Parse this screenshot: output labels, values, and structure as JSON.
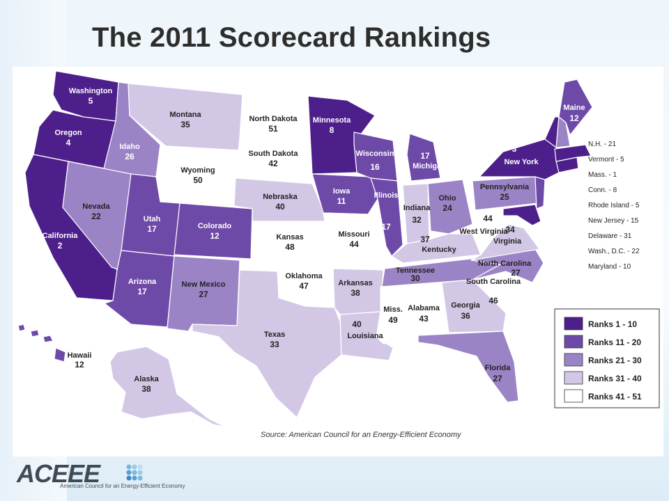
{
  "slide": {
    "title": "The 2011 Scorecard Rankings"
  },
  "colors": {
    "rank_1_10": "#4d1f8a",
    "rank_11_20": "#6e4aa8",
    "rank_21_30": "#9b84c6",
    "rank_31_40": "#d2c8e6",
    "rank_41_51": "#ffffff"
  },
  "map": {
    "states": [
      {
        "id": "washington",
        "name": "Washington",
        "rank": "5",
        "tier": "rank_1_10"
      },
      {
        "id": "oregon",
        "name": "Oregon",
        "rank": "4",
        "tier": "rank_1_10"
      },
      {
        "id": "california",
        "name": "California",
        "rank": "2",
        "tier": "rank_1_10"
      },
      {
        "id": "idaho",
        "name": "Idaho",
        "rank": "26",
        "tier": "rank_21_30"
      },
      {
        "id": "nevada",
        "name": "Nevada",
        "rank": "22",
        "tier": "rank_21_30"
      },
      {
        "id": "montana",
        "name": "Montana",
        "rank": "35",
        "tier": "rank_31_40"
      },
      {
        "id": "wyoming",
        "name": "Wyoming",
        "rank": "50",
        "tier": "rank_41_51"
      },
      {
        "id": "utah",
        "name": "Utah",
        "rank": "17",
        "tier": "rank_11_20"
      },
      {
        "id": "arizona",
        "name": "Arizona",
        "rank": "17",
        "tier": "rank_11_20"
      },
      {
        "id": "colorado",
        "name": "Colorado",
        "rank": "12",
        "tier": "rank_11_20"
      },
      {
        "id": "new_mexico",
        "name": "New Mexico",
        "rank": "27",
        "tier": "rank_21_30"
      },
      {
        "id": "north_dakota",
        "name": "North Dakota",
        "rank": "51",
        "tier": "rank_41_51"
      },
      {
        "id": "south_dakota",
        "name": "South Dakota",
        "rank": "42",
        "tier": "rank_41_51"
      },
      {
        "id": "nebraska",
        "name": "Nebraska",
        "rank": "40",
        "tier": "rank_31_40"
      },
      {
        "id": "kansas",
        "name": "Kansas",
        "rank": "48",
        "tier": "rank_41_51"
      },
      {
        "id": "oklahoma",
        "name": "Oklahoma",
        "rank": "47",
        "tier": "rank_41_51"
      },
      {
        "id": "texas",
        "name": "Texas",
        "rank": "33",
        "tier": "rank_31_40"
      },
      {
        "id": "minnesota",
        "name": "Minnesota",
        "rank": "8",
        "tier": "rank_1_10"
      },
      {
        "id": "iowa",
        "name": "Iowa",
        "rank": "11",
        "tier": "rank_11_20"
      },
      {
        "id": "missouri",
        "name": "Missouri",
        "rank": "44",
        "tier": "rank_41_51"
      },
      {
        "id": "arkansas",
        "name": "Arkansas",
        "rank": "38",
        "tier": "rank_31_40"
      },
      {
        "id": "louisiana",
        "name": "Louisiana",
        "rank": "40",
        "tier": "rank_31_40"
      },
      {
        "id": "wisconsin",
        "name": "Wisconsin",
        "rank": "16",
        "tier": "rank_11_20"
      },
      {
        "id": "illinois",
        "name": "Illinois",
        "rank": "17",
        "tier": "rank_11_20"
      },
      {
        "id": "michigan",
        "name": "Michigan",
        "rank": "17",
        "tier": "rank_11_20"
      },
      {
        "id": "indiana",
        "name": "Indiana",
        "rank": "32",
        "tier": "rank_31_40"
      },
      {
        "id": "ohio",
        "name": "Ohio",
        "rank": "24",
        "tier": "rank_21_30"
      },
      {
        "id": "kentucky",
        "name": "Kentucky",
        "rank": "37",
        "tier": "rank_31_40"
      },
      {
        "id": "tennessee",
        "name": "Tennessee",
        "rank": "30",
        "tier": "rank_21_30"
      },
      {
        "id": "mississippi",
        "name": "Miss.",
        "rank": "49",
        "tier": "rank_41_51"
      },
      {
        "id": "alabama",
        "name": "Alabama",
        "rank": "43",
        "tier": "rank_41_51"
      },
      {
        "id": "georgia",
        "name": "Georgia",
        "rank": "36",
        "tier": "rank_31_40"
      },
      {
        "id": "florida",
        "name": "Florida",
        "rank": "27",
        "tier": "rank_21_30"
      },
      {
        "id": "south_carolina",
        "name": "South Carolina",
        "rank": "46",
        "tier": "rank_41_51"
      },
      {
        "id": "north_carolina",
        "name": "North Carolina",
        "rank": "27",
        "tier": "rank_21_30"
      },
      {
        "id": "virginia",
        "name": "Virginia",
        "rank": "34",
        "tier": "rank_31_40"
      },
      {
        "id": "west_virginia",
        "name": "West Virginia",
        "rank": "44",
        "tier": "rank_41_51"
      },
      {
        "id": "pennsylvania",
        "name": "Pennsylvania",
        "rank": "25",
        "tier": "rank_21_30"
      },
      {
        "id": "new_york",
        "name": "New York",
        "rank": "3",
        "tier": "rank_1_10"
      },
      {
        "id": "maine",
        "name": "Maine",
        "rank": "12",
        "tier": "rank_11_20"
      },
      {
        "id": "alaska",
        "name": "Alaska",
        "rank": "38",
        "tier": "rank_31_40"
      },
      {
        "id": "hawaii",
        "name": "Hawaii",
        "rank": "12",
        "tier": "rank_11_20"
      }
    ],
    "small_states_notes": [
      "N.H. - 21",
      "Vermont - 5",
      "Mass. - 1",
      "Conn. - 8",
      "Rhode Island - 5",
      "New Jersey - 15",
      "Delaware - 31",
      "Wash., D.C. - 22",
      "Maryland - 10"
    ],
    "source": "Source: American Council for an Energy-Efficient Economy"
  },
  "legend": {
    "items": [
      {
        "label": "Ranks 1 - 10",
        "tier": "rank_1_10"
      },
      {
        "label": "Ranks 11 - 20",
        "tier": "rank_11_20"
      },
      {
        "label": "Ranks 21 - 30",
        "tier": "rank_21_30"
      },
      {
        "label": "Ranks 31 - 40",
        "tier": "rank_31_40"
      },
      {
        "label": "Ranks 41 - 51",
        "tier": "rank_41_51"
      }
    ]
  },
  "logo": {
    "wordmark": "ACEEE",
    "tagline": "American Council for an Energy-Efficient Economy"
  }
}
